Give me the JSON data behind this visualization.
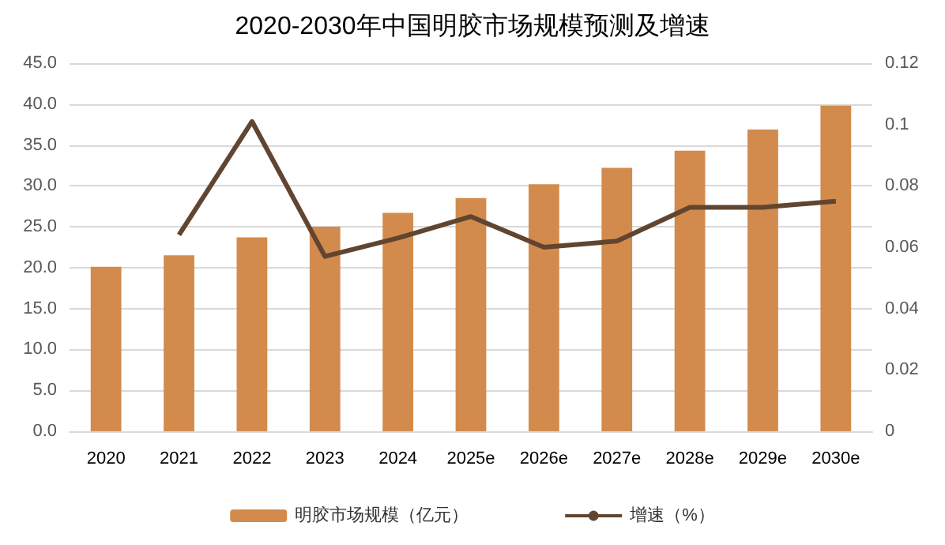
{
  "chart_data": {
    "type": "bar",
    "title": "2020-2030年中国明胶市场规模预测及增速",
    "categories": [
      "2020",
      "2021",
      "2022",
      "2023",
      "2024",
      "2025e",
      "2026e",
      "2027e",
      "2028e",
      "2029e",
      "2030e"
    ],
    "series": [
      {
        "name": "明胶市场规模（亿元）",
        "color": "#d38b4d",
        "values": [
          20.1,
          21.5,
          23.7,
          25.0,
          26.7,
          28.5,
          30.2,
          32.2,
          34.3,
          36.9,
          39.8
        ]
      },
      {
        "name": "增速（%）",
        "type": "line",
        "axis": "y2",
        "color": "#614530",
        "values": [
          null,
          0.064,
          0.101,
          0.057,
          0.063,
          0.07,
          0.06,
          0.062,
          0.073,
          0.073,
          0.075
        ]
      }
    ],
    "ylim": [
      0,
      45
    ],
    "yticks": [
      {
        "value": 0,
        "label": "0.0"
      },
      {
        "value": 5,
        "label": "5.0"
      },
      {
        "value": 10,
        "label": "10.0"
      },
      {
        "value": 15,
        "label": "15.0"
      },
      {
        "value": 20,
        "label": "20.0"
      },
      {
        "value": 25,
        "label": "25.0"
      },
      {
        "value": 30,
        "label": "30.0"
      },
      {
        "value": 35,
        "label": "35.0"
      },
      {
        "value": 40,
        "label": "40.0"
      },
      {
        "value": 45,
        "label": "45.0"
      }
    ],
    "y2lim": [
      0,
      0.12
    ],
    "y2ticks": [
      0,
      0.02,
      0.04,
      0.06,
      0.08,
      0.1,
      0.12
    ],
    "grid": "y",
    "legend": "bottom",
    "marker": "none",
    "line_style": "solid"
  }
}
